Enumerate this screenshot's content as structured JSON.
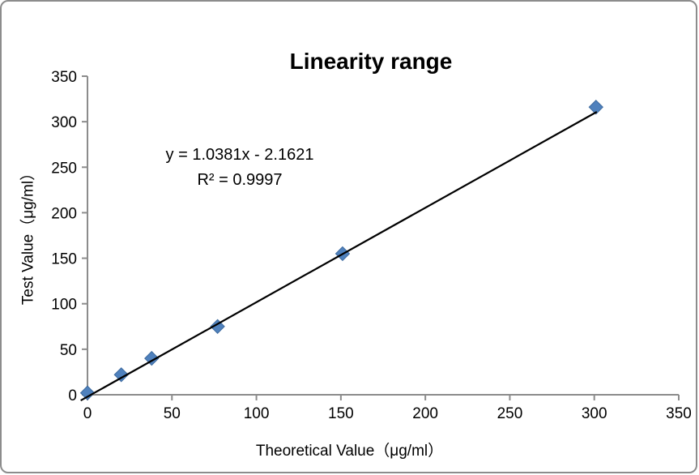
{
  "chart_data": {
    "type": "scatter",
    "title": "Linearity range",
    "xlabel": "Theoretical Value（μg/ml）",
    "ylabel": "Test Value（μg/ml）",
    "xlim": [
      0,
      350
    ],
    "ylim": [
      0,
      350
    ],
    "x_ticks": [
      0,
      50,
      100,
      150,
      200,
      250,
      300,
      350
    ],
    "y_ticks": [
      0,
      50,
      100,
      150,
      200,
      250,
      300,
      350
    ],
    "grid": false,
    "legend": false,
    "series": [
      {
        "name": "Test Value",
        "marker": "diamond",
        "color": "#4F81BD",
        "edge_color": "#3D6A9E",
        "points": [
          [
            0,
            2
          ],
          [
            20,
            22
          ],
          [
            38,
            40
          ],
          [
            77,
            75
          ],
          [
            151,
            155
          ],
          [
            301,
            316
          ]
        ]
      }
    ],
    "trendline": {
      "slope": 1.0381,
      "intercept": -2.1621,
      "color": "#000000",
      "x_start": -4,
      "x_end": 301.5
    },
    "annotation": {
      "line1": "y = 1.0381x - 2.1621",
      "line2": "R² = 0.9997"
    },
    "colors": {
      "axis": "#8C8C8C",
      "text": "#000000",
      "frame_border": "#8C8C8C"
    }
  }
}
